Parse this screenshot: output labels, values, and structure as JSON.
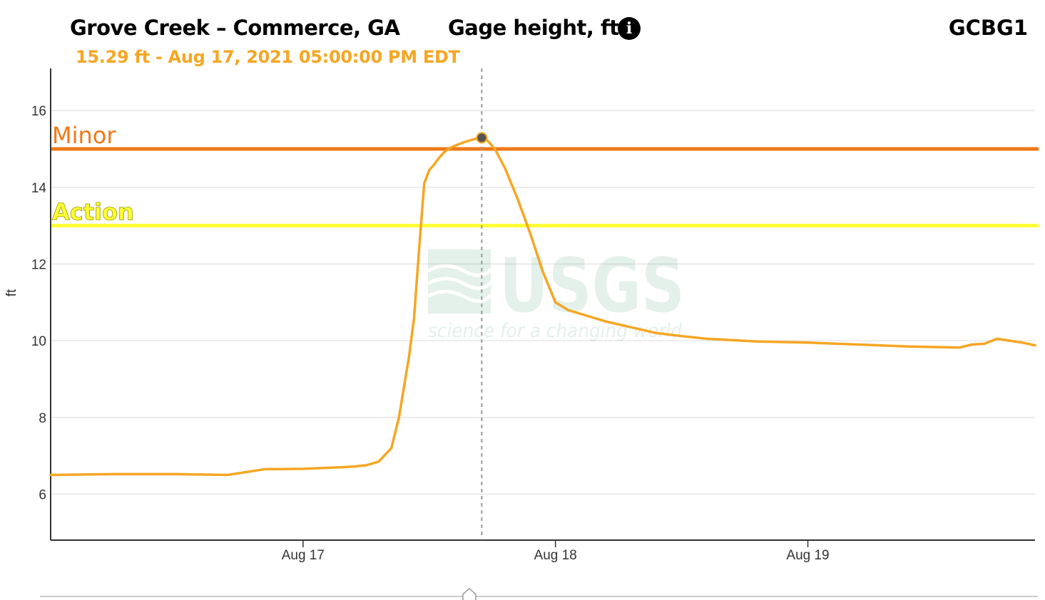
{
  "header": {
    "site_name": "Grove Creek – Commerce, GA",
    "parameter": "Gage height, ft",
    "info_glyph": "i",
    "site_code": "GCBG1",
    "readout": "15.29 ft - Aug 17, 2021 05:00:00 PM EDT"
  },
  "colors": {
    "series": "#f5a623",
    "minor": "#f07818",
    "action": "#ffff33",
    "grid": "#e6e6e6",
    "axis": "#333333"
  },
  "chart_data": {
    "type": "line",
    "title": "Gage height, ft",
    "xlabel": "",
    "ylabel": "ft",
    "x_unit": "days (Aug 16, 2021 00:00 EDT = 16.0)",
    "xlim": [
      16.0,
      19.9
    ],
    "ylim": [
      4.8,
      17.1
    ],
    "y_ticks": [
      6,
      8,
      10,
      12,
      14,
      16
    ],
    "x_ticks": [
      {
        "value": 17,
        "label": "Aug 17"
      },
      {
        "value": 18,
        "label": "Aug 18"
      },
      {
        "value": 19,
        "label": "Aug 19"
      }
    ],
    "grid": true,
    "watermark": {
      "main": "USGS",
      "tagline": "science for a changing world"
    },
    "thresholds": [
      {
        "name": "Minor",
        "value": 15.0
      },
      {
        "name": "Action",
        "value": 13.0
      }
    ],
    "highlight": {
      "x": 17.708,
      "y": 15.29
    },
    "series": [
      {
        "name": "Gage height",
        "x": [
          16.0,
          16.25,
          16.5,
          16.7,
          16.78,
          16.85,
          17.0,
          17.15,
          17.2,
          17.25,
          17.3,
          17.35,
          17.38,
          17.4,
          17.42,
          17.44,
          17.46,
          17.48,
          17.5,
          17.52,
          17.54,
          17.56,
          17.58,
          17.6,
          17.62,
          17.64,
          17.66,
          17.68,
          17.708,
          17.73,
          17.76,
          17.8,
          17.85,
          17.9,
          17.95,
          18.0,
          18.05,
          18.1,
          18.2,
          18.3,
          18.4,
          18.5,
          18.6,
          18.8,
          19.0,
          19.2,
          19.4,
          19.6,
          19.65,
          19.7,
          19.75,
          19.8,
          19.85,
          19.9
        ],
        "y": [
          6.5,
          6.52,
          6.52,
          6.5,
          6.58,
          6.65,
          6.66,
          6.7,
          6.72,
          6.75,
          6.85,
          7.2,
          8.0,
          8.8,
          9.6,
          10.6,
          12.4,
          14.1,
          14.45,
          14.6,
          14.78,
          14.92,
          15.02,
          15.08,
          15.13,
          15.18,
          15.22,
          15.26,
          15.29,
          15.22,
          15.0,
          14.5,
          13.7,
          12.8,
          11.8,
          11.0,
          10.8,
          10.7,
          10.5,
          10.35,
          10.2,
          10.12,
          10.05,
          9.98,
          9.95,
          9.9,
          9.85,
          9.82,
          9.9,
          9.92,
          10.05,
          10.0,
          9.95,
          9.88
        ]
      }
    ]
  }
}
